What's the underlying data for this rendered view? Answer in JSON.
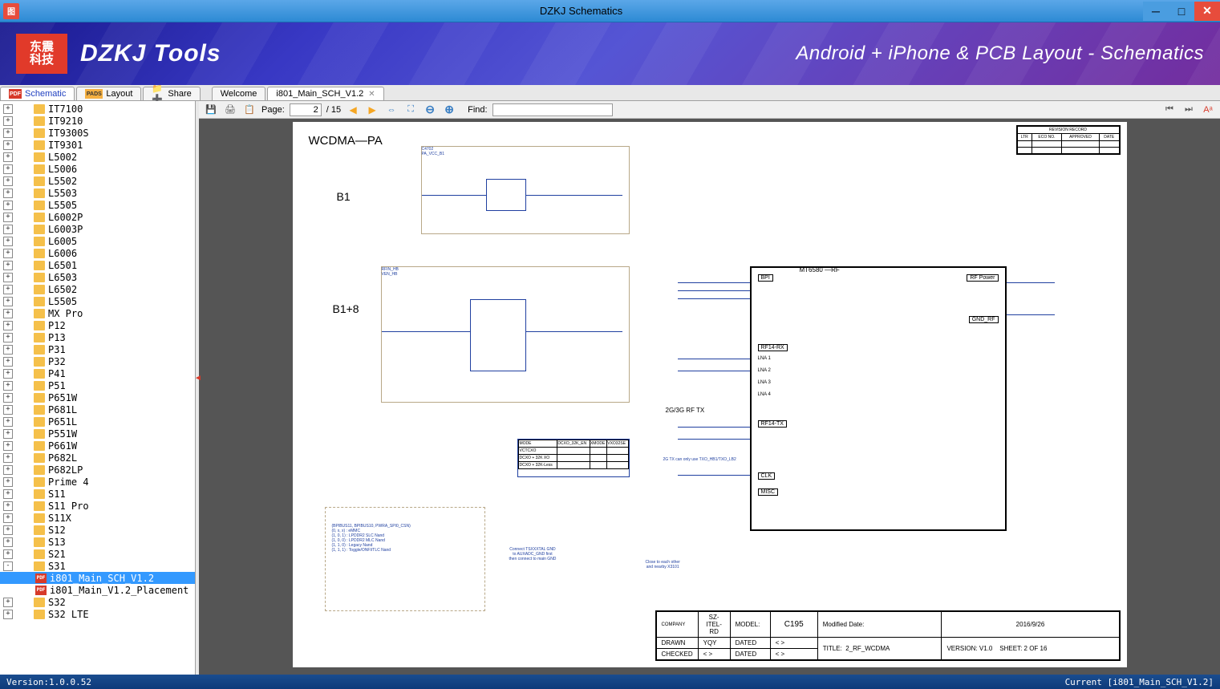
{
  "window": {
    "title": "DZKJ Schematics",
    "icon_text": "图"
  },
  "banner": {
    "logo_text": "东震\n科技",
    "title": "DZKJ Tools",
    "subtitle": "Android + iPhone & PCB Layout - Schematics"
  },
  "side_tabs": [
    {
      "icon": "pdf",
      "label": "Schematic",
      "active": true,
      "color": "#2040c0"
    },
    {
      "icon": "pads",
      "label": "Layout",
      "active": false
    },
    {
      "icon": "share",
      "label": "Share",
      "active": false
    }
  ],
  "doc_tabs": [
    {
      "label": "Welcome",
      "active": false,
      "closable": false
    },
    {
      "label": "i801_Main_SCH_V1.2",
      "active": true,
      "closable": true
    }
  ],
  "tree": [
    {
      "label": "IT7100",
      "exp": "+"
    },
    {
      "label": "IT9210",
      "exp": "+"
    },
    {
      "label": "IT9300S",
      "exp": "+"
    },
    {
      "label": "IT9301",
      "exp": "+"
    },
    {
      "label": "L5002",
      "exp": "+"
    },
    {
      "label": "L5006",
      "exp": "+"
    },
    {
      "label": "L5502",
      "exp": "+"
    },
    {
      "label": "L5503",
      "exp": "+"
    },
    {
      "label": "L5505",
      "exp": "+"
    },
    {
      "label": "L6002P",
      "exp": "+"
    },
    {
      "label": "L6003P",
      "exp": "+"
    },
    {
      "label": "L6005",
      "exp": "+"
    },
    {
      "label": "L6006",
      "exp": "+"
    },
    {
      "label": "L6501",
      "exp": "+"
    },
    {
      "label": "L6503",
      "exp": "+"
    },
    {
      "label": "L6502",
      "exp": "+"
    },
    {
      "label": "L5505",
      "exp": "+"
    },
    {
      "label": "MX Pro",
      "exp": "+"
    },
    {
      "label": "P12",
      "exp": "+"
    },
    {
      "label": "P13",
      "exp": "+"
    },
    {
      "label": "P31",
      "exp": "+"
    },
    {
      "label": "P32",
      "exp": "+"
    },
    {
      "label": "P41",
      "exp": "+"
    },
    {
      "label": "P51",
      "exp": "+"
    },
    {
      "label": "P651W",
      "exp": "+"
    },
    {
      "label": "P681L",
      "exp": "+"
    },
    {
      "label": "P651L",
      "exp": "+"
    },
    {
      "label": "P551W",
      "exp": "+"
    },
    {
      "label": "P661W",
      "exp": "+"
    },
    {
      "label": "P682L",
      "exp": "+"
    },
    {
      "label": "P682LP",
      "exp": "+"
    },
    {
      "label": "Prime 4",
      "exp": "+"
    },
    {
      "label": "S11",
      "exp": "+"
    },
    {
      "label": "S11 Pro",
      "exp": "+"
    },
    {
      "label": "S11X",
      "exp": "+"
    },
    {
      "label": "S12",
      "exp": "+"
    },
    {
      "label": "S13",
      "exp": "+"
    },
    {
      "label": "S21",
      "exp": "+"
    },
    {
      "label": "S31",
      "exp": "-",
      "children": [
        {
          "label": "i801_Main_SCH_V1.2",
          "selected": true
        },
        {
          "label": "i801_Main_V1.2_Placement",
          "selected": false
        }
      ]
    },
    {
      "label": "S32",
      "exp": "+"
    },
    {
      "label": "S32 LTE",
      "exp": "+"
    }
  ],
  "pdf_toolbar": {
    "page_label": "Page:",
    "current_page": "2",
    "total_pages": "/ 15",
    "find_label": "Find:",
    "find_value": ""
  },
  "schematic": {
    "title": "WCDMA—PA",
    "label_b1": "B1",
    "label_b1_8": "B1+8",
    "label_mt6580": "MT6580 —RF",
    "label_bpi": "BPI",
    "label_rfpower": "RF Power",
    "label_gnd": "GND_RF",
    "label_rf14rx": "RF14-RX",
    "label_lna1": "LNA 1",
    "label_lna2": "LNA 2",
    "label_lna3": "LNA 3",
    "label_lna4": "LNA 4",
    "label_rf14tx": "RF14-TX",
    "label_2g3g": "2G/3G RF TX",
    "label_clk": "CLK",
    "label_misc": "MISC",
    "label_2gtx": "2G TX can only use TXO_HB1/TXO_LB2",
    "mode_table": {
      "rows": [
        [
          "VCTCXO",
          "",
          ""
        ],
        [
          "DCXO + 32K XO",
          "",
          ""
        ],
        [
          "DCXO + 32K-Less",
          "",
          ""
        ]
      ]
    },
    "notes": [
      "(BPIBUS11, BPIBUS10, PWRA_SPI0_CSN)",
      "(0, x, x) : eMMC",
      "(1, 0, 1) : LPDDR2 SLC Nand",
      "(1, 0, 0) : LPDDR2 MLC Nand",
      "(1, 1, 0) : Legacy Nand",
      "(1, 1, 1) : Toggle/ONFI/TLC Nand"
    ],
    "note2": [
      "Connect TSXXXTAL GND",
      "to AUXADC_GND first",
      "then connect to main GND"
    ],
    "note3": [
      "Close to each other",
      "and nearby X3101"
    ],
    "titleblock": {
      "company": "COMPANY",
      "company_val": "SZ-ITEL-RD",
      "model": "MODEL:",
      "model_val": "C195",
      "modified": "Modified Date:",
      "modified_val": "2016/9/26",
      "drawn": "DRAWN",
      "drawn_val": "YQY",
      "dated": "DATED",
      "dated_val": "< >",
      "title": "TITLE:",
      "title_val": "2_RF_WCDMA",
      "version": "VERSION:",
      "version_val": "V1.0",
      "sheet": "SHEET:",
      "sheet_val": "2  OF  16",
      "checked": "CHECKED",
      "checked_val": "< >"
    },
    "revtable_header": "REVISION RECORD",
    "revtable_cols": [
      "LTR",
      "ECO NO.",
      "APPROVED",
      "DATE"
    ]
  },
  "statusbar": {
    "version": "Version:1.0.0.52",
    "current": "Current [i801_Main_SCH_V1.2]"
  }
}
